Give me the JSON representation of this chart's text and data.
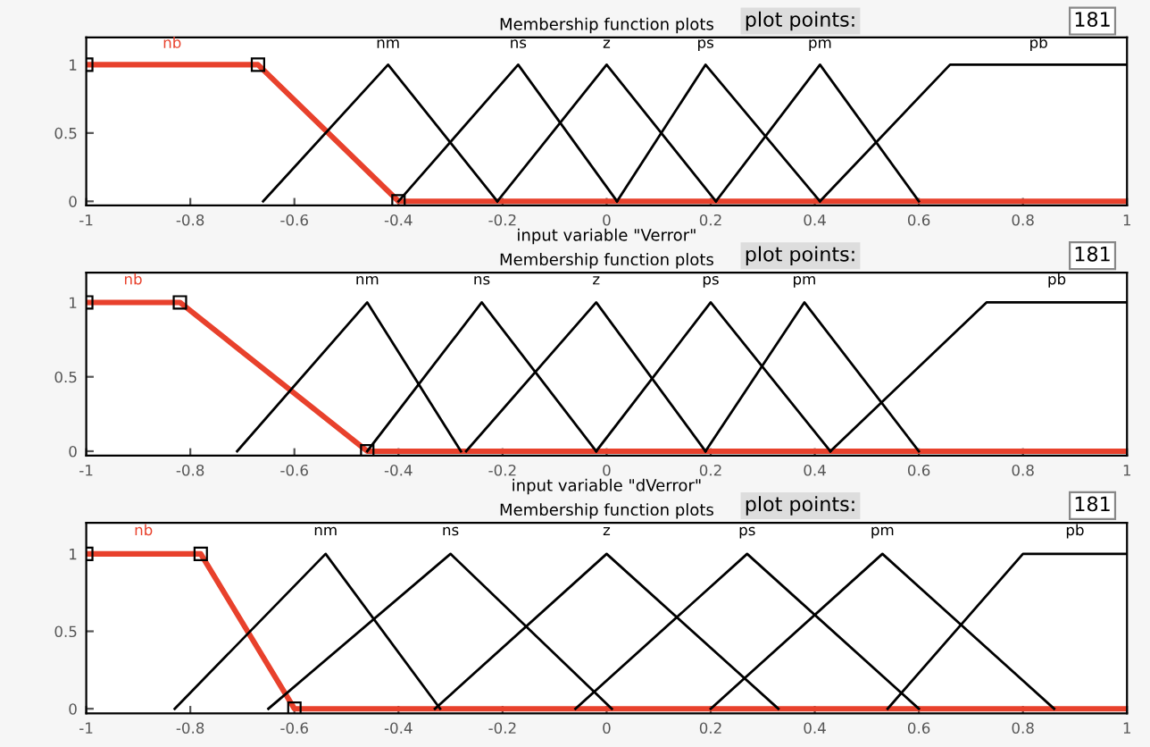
{
  "chart_data": [
    {
      "type": "line",
      "title": "Membership function plots",
      "xlabel": "input variable \"Verror\"",
      "annotations": [
        "plot points:",
        "181"
      ],
      "xlim": [
        -1,
        1
      ],
      "ylim": [
        -0.03,
        1.2
      ],
      "xticks": [
        -1,
        -0.8,
        -0.6,
        -0.4,
        -0.2,
        0,
        0.2,
        0.4,
        0.6,
        0.8,
        1
      ],
      "yticks": [
        0,
        0.5,
        1
      ],
      "grid": false,
      "legend": false,
      "series": [
        {
          "name": "nb",
          "color": "#e8412c",
          "marker": "square",
          "x": [
            -1,
            -0.67,
            -0.4,
            1
          ],
          "values": [
            1,
            1,
            0,
            0
          ]
        },
        {
          "name": "nm",
          "color": "#000000",
          "x": [
            -0.66,
            -0.42,
            -0.21
          ],
          "values": [
            0,
            1,
            0
          ]
        },
        {
          "name": "ns",
          "color": "#000000",
          "x": [
            -0.4,
            -0.17,
            0.02
          ],
          "values": [
            0,
            1,
            0
          ]
        },
        {
          "name": "z",
          "color": "#000000",
          "x": [
            -0.21,
            0,
            0.21
          ],
          "values": [
            0,
            1,
            0
          ]
        },
        {
          "name": "ps",
          "color": "#000000",
          "x": [
            0.02,
            0.19,
            0.41
          ],
          "values": [
            0,
            1,
            0
          ]
        },
        {
          "name": "pm",
          "color": "#000000",
          "x": [
            0.21,
            0.41,
            0.6
          ],
          "values": [
            0,
            1,
            0
          ]
        },
        {
          "name": "pb",
          "color": "#000000",
          "x": [
            0.41,
            0.66,
            1
          ],
          "values": [
            0,
            1,
            1
          ]
        }
      ]
    },
    {
      "type": "line",
      "title": "Membership function plots",
      "xlabel": "input variable \"dVerror\"",
      "annotations": [
        "plot points:",
        "181"
      ],
      "xlim": [
        -1,
        1
      ],
      "ylim": [
        -0.03,
        1.2
      ],
      "xticks": [
        -1,
        -0.8,
        -0.6,
        -0.4,
        -0.2,
        0,
        0.2,
        0.4,
        0.6,
        0.8,
        1
      ],
      "yticks": [
        0,
        0.5,
        1
      ],
      "grid": false,
      "legend": false,
      "series": [
        {
          "name": "nb",
          "color": "#e8412c",
          "marker": "square",
          "x": [
            -1,
            -0.82,
            -0.46,
            1
          ],
          "values": [
            1,
            1,
            0,
            0
          ]
        },
        {
          "name": "nm",
          "color": "#000000",
          "x": [
            -0.71,
            -0.46,
            -0.28
          ],
          "values": [
            0,
            1,
            0
          ]
        },
        {
          "name": "ns",
          "color": "#000000",
          "x": [
            -0.46,
            -0.24,
            -0.02
          ],
          "values": [
            0,
            1,
            0
          ]
        },
        {
          "name": "z",
          "color": "#000000",
          "x": [
            -0.27,
            -0.02,
            0.19
          ],
          "values": [
            0,
            1,
            0
          ]
        },
        {
          "name": "ps",
          "color": "#000000",
          "x": [
            -0.02,
            0.2,
            0.43
          ],
          "values": [
            0,
            1,
            0
          ]
        },
        {
          "name": "pm",
          "color": "#000000",
          "x": [
            0.19,
            0.38,
            0.6
          ],
          "values": [
            0,
            1,
            0
          ]
        },
        {
          "name": "pb",
          "color": "#000000",
          "x": [
            0.43,
            0.73,
            1
          ],
          "values": [
            0,
            1,
            1
          ]
        }
      ]
    },
    {
      "type": "line",
      "title": "Membership function plots",
      "annotations": [
        "plot points:",
        "181"
      ],
      "xlim": [
        -1,
        1
      ],
      "ylim": [
        -0.03,
        1.2
      ],
      "xticks": [
        -1,
        -0.8,
        -0.6,
        -0.4,
        -0.2,
        0,
        0.2,
        0.4,
        0.6,
        0.8,
        1
      ],
      "yticks": [
        0,
        0.5,
        1
      ],
      "grid": false,
      "legend": false,
      "series": [
        {
          "name": "nb",
          "color": "#e8412c",
          "marker": "square",
          "x": [
            -1,
            -0.78,
            -0.6,
            1
          ],
          "values": [
            1,
            1,
            0,
            0
          ]
        },
        {
          "name": "nm",
          "color": "#000000",
          "x": [
            -0.83,
            -0.54,
            -0.32
          ],
          "values": [
            0,
            1,
            0
          ]
        },
        {
          "name": "ns",
          "color": "#000000",
          "x": [
            -0.65,
            -0.3,
            0.01
          ],
          "values": [
            0,
            1,
            0
          ]
        },
        {
          "name": "z",
          "color": "#000000",
          "x": [
            -0.33,
            0,
            0.33
          ],
          "values": [
            0,
            1,
            0
          ]
        },
        {
          "name": "ps",
          "color": "#000000",
          "x": [
            -0.06,
            0.27,
            0.6
          ],
          "values": [
            0,
            1,
            0
          ]
        },
        {
          "name": "pm",
          "color": "#000000",
          "x": [
            0.2,
            0.53,
            0.86
          ],
          "values": [
            0,
            1,
            0
          ]
        },
        {
          "name": "pb",
          "color": "#000000",
          "x": [
            0.54,
            0.8,
            1
          ],
          "values": [
            0,
            1,
            1
          ]
        }
      ]
    }
  ]
}
